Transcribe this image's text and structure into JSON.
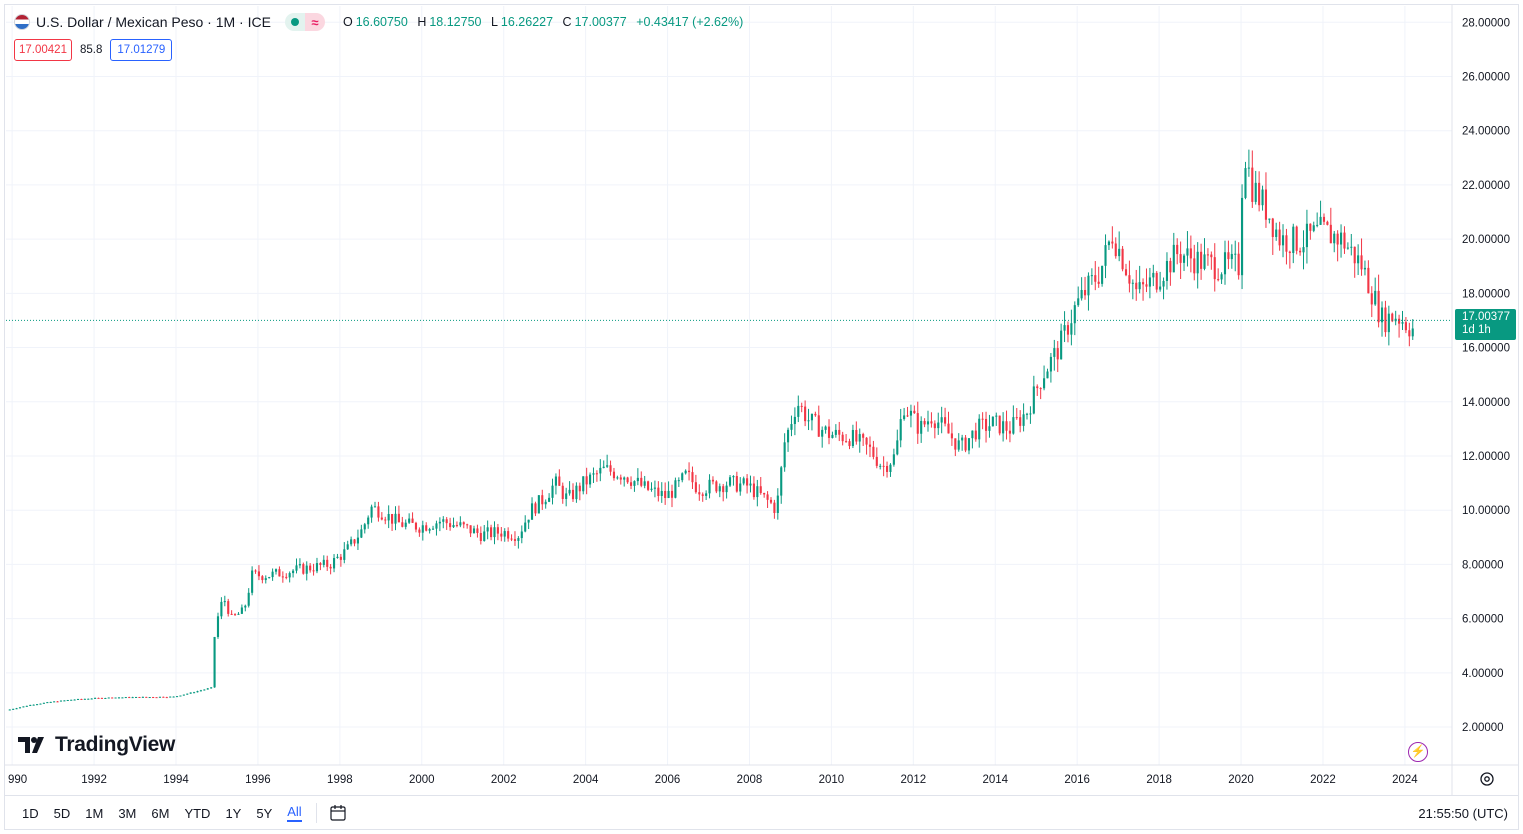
{
  "header": {
    "symbol_title": "U.S. Dollar / Mexican Peso · 1M · ICE",
    "flag_icon": "us-mx-flag-icon",
    "status_icon": "market-open-dot-icon",
    "delayed_icon_glyph": "≈",
    "ohlc": {
      "o_label": "O",
      "o_value": "16.60750",
      "h_label": "H",
      "h_value": "18.12750",
      "l_label": "L",
      "l_value": "16.26227",
      "c_label": "C",
      "c_value": "17.00377",
      "change": "+0.43417 (+2.62%)"
    },
    "bid": "17.00421",
    "spread": "85.8",
    "ask": "17.01279"
  },
  "price_label": {
    "price": "17.00377",
    "countdown": "1d 1h"
  },
  "brand": {
    "name": "TradingView"
  },
  "bottom_bar": {
    "ranges": [
      "1D",
      "5D",
      "1M",
      "3M",
      "6M",
      "YTD",
      "1Y",
      "5Y",
      "All"
    ],
    "active_range": "All",
    "clock": "21:55:50 (UTC)"
  },
  "colors": {
    "up": "#089981",
    "down": "#f23645",
    "grid": "#f0f3fa",
    "accent": "#2962ff"
  },
  "chart_data": {
    "type": "candlestick",
    "interval": "1M",
    "y_ticks": [
      "2.00000",
      "4.00000",
      "6.00000",
      "8.00000",
      "10.00000",
      "12.00000",
      "14.00000",
      "16.00000",
      "18.00000",
      "20.00000",
      "22.00000",
      "24.00000",
      "26.00000",
      "28.00000"
    ],
    "x_ticks": [
      "990",
      "1992",
      "1994",
      "1996",
      "1998",
      "2000",
      "2002",
      "2004",
      "2006",
      "2008",
      "2010",
      "2012",
      "2014",
      "2016",
      "2018",
      "2020",
      "2022",
      "2024"
    ],
    "ylim": [
      0.6,
      28.6
    ],
    "xlim": [
      1989.85,
      2025.15
    ],
    "last_price": 17.00377,
    "grid": true,
    "path_points": [
      [
        1989.9,
        2.62
      ],
      [
        1990.5,
        2.82
      ],
      [
        1991.0,
        2.93
      ],
      [
        1991.5,
        3.01
      ],
      [
        1992.0,
        3.06
      ],
      [
        1992.5,
        3.09
      ],
      [
        1993.0,
        3.1
      ],
      [
        1993.5,
        3.11
      ],
      [
        1994.0,
        3.12
      ],
      [
        1994.5,
        3.3
      ],
      [
        1994.9,
        3.45
      ],
      [
        1995.0,
        5.7
      ],
      [
        1995.2,
        6.8
      ],
      [
        1995.4,
        6.0
      ],
      [
        1995.7,
        6.3
      ],
      [
        1995.9,
        7.6
      ],
      [
        1996.3,
        7.6
      ],
      [
        1997.0,
        7.8
      ],
      [
        1997.8,
        8.0
      ],
      [
        1998.2,
        8.5
      ],
      [
        1998.6,
        9.3
      ],
      [
        1998.8,
        10.1
      ],
      [
        1999.0,
        10.0
      ],
      [
        1999.5,
        9.5
      ],
      [
        2000.0,
        9.4
      ],
      [
        2000.5,
        9.6
      ],
      [
        2001.0,
        9.4
      ],
      [
        2001.5,
        9.1
      ],
      [
        2002.0,
        9.2
      ],
      [
        2002.4,
        9.1
      ],
      [
        2002.7,
        10.0
      ],
      [
        2003.0,
        10.4
      ],
      [
        2003.3,
        11.0
      ],
      [
        2003.6,
        10.4
      ],
      [
        2004.0,
        11.0
      ],
      [
        2004.5,
        11.5
      ],
      [
        2005.0,
        11.3
      ],
      [
        2005.5,
        10.8
      ],
      [
        2006.0,
        10.5
      ],
      [
        2006.3,
        10.9
      ],
      [
        2006.5,
        11.3
      ],
      [
        2006.8,
        10.8
      ],
      [
        2007.5,
        11.0
      ],
      [
        2008.0,
        10.9
      ],
      [
        2008.6,
        10.2
      ],
      [
        2008.7,
        10.0
      ],
      [
        2008.9,
        12.5
      ],
      [
        2009.2,
        14.0
      ],
      [
        2009.5,
        13.3
      ],
      [
        2010.0,
        12.8
      ],
      [
        2010.5,
        12.7
      ],
      [
        2011.0,
        12.2
      ],
      [
        2011.3,
        11.6
      ],
      [
        2011.6,
        12.0
      ],
      [
        2011.8,
        13.9
      ],
      [
        2012.2,
        13.0
      ],
      [
        2012.5,
        13.5
      ],
      [
        2012.8,
        13.0
      ],
      [
        2013.2,
        12.3
      ],
      [
        2013.6,
        13.0
      ],
      [
        2014.0,
        13.2
      ],
      [
        2014.4,
        13.0
      ],
      [
        2014.8,
        13.6
      ],
      [
        2015.2,
        15.0
      ],
      [
        2015.6,
        16.0
      ],
      [
        2016.0,
        17.5
      ],
      [
        2016.3,
        18.2
      ],
      [
        2016.6,
        18.8
      ],
      [
        2016.9,
        20.2
      ],
      [
        2017.1,
        19.5
      ],
      [
        2017.5,
        18.0
      ],
      [
        2018.0,
        18.6
      ],
      [
        2018.5,
        19.5
      ],
      [
        2019.0,
        19.2
      ],
      [
        2019.5,
        19.0
      ],
      [
        2020.0,
        19.0
      ],
      [
        2020.1,
        23.5
      ],
      [
        2020.3,
        22.0
      ],
      [
        2020.7,
        21.0
      ],
      [
        2021.0,
        20.0
      ],
      [
        2021.5,
        19.9
      ],
      [
        2022.0,
        20.3
      ],
      [
        2022.5,
        20.0
      ],
      [
        2023.0,
        19.0
      ],
      [
        2023.5,
        17.0
      ],
      [
        2023.8,
        17.2
      ],
      [
        2024.0,
        17.0
      ],
      [
        2024.2,
        16.7
      ]
    ]
  }
}
